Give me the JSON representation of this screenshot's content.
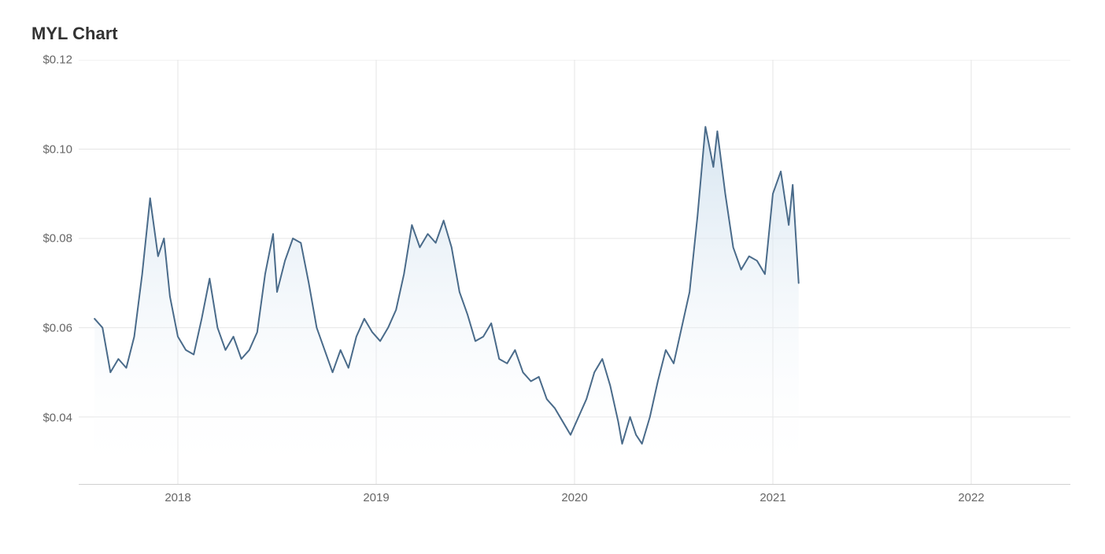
{
  "chart": {
    "type": "area",
    "title": "MYL Chart",
    "title_fontsize": 22,
    "title_color": "#333333",
    "background_color": "#ffffff",
    "grid_color": "#e5e5e5",
    "axis_text_color": "#666666",
    "line_color": "#4a6b8a",
    "line_width": 2,
    "fill_top_color": "#cfe0ee",
    "fill_bottom_color": "#ffffff",
    "fill_opacity": 0.85,
    "y_axis": {
      "min": 0.025,
      "max": 0.12,
      "ticks": [
        0.04,
        0.06,
        0.08,
        0.1,
        0.12
      ],
      "tick_labels": [
        "$0.04",
        "$0.06",
        "$0.08",
        "$0.10",
        "$0.12"
      ],
      "label_fontsize": 15
    },
    "x_axis": {
      "min": 2017.5,
      "max": 2022.5,
      "ticks": [
        2018,
        2019,
        2020,
        2021,
        2022
      ],
      "tick_labels": [
        "2018",
        "2019",
        "2020",
        "2021",
        "2022"
      ],
      "label_fontsize": 15
    },
    "series": [
      {
        "name": "MYL",
        "data": [
          [
            2017.58,
            0.062
          ],
          [
            2017.62,
            0.06
          ],
          [
            2017.66,
            0.05
          ],
          [
            2017.7,
            0.053
          ],
          [
            2017.74,
            0.051
          ],
          [
            2017.78,
            0.058
          ],
          [
            2017.82,
            0.072
          ],
          [
            2017.86,
            0.089
          ],
          [
            2017.9,
            0.076
          ],
          [
            2017.93,
            0.08
          ],
          [
            2017.96,
            0.067
          ],
          [
            2018.0,
            0.058
          ],
          [
            2018.04,
            0.055
          ],
          [
            2018.08,
            0.054
          ],
          [
            2018.12,
            0.062
          ],
          [
            2018.16,
            0.071
          ],
          [
            2018.2,
            0.06
          ],
          [
            2018.24,
            0.055
          ],
          [
            2018.28,
            0.058
          ],
          [
            2018.32,
            0.053
          ],
          [
            2018.36,
            0.055
          ],
          [
            2018.4,
            0.059
          ],
          [
            2018.44,
            0.072
          ],
          [
            2018.48,
            0.081
          ],
          [
            2018.5,
            0.068
          ],
          [
            2018.54,
            0.075
          ],
          [
            2018.58,
            0.08
          ],
          [
            2018.62,
            0.079
          ],
          [
            2018.66,
            0.07
          ],
          [
            2018.7,
            0.06
          ],
          [
            2018.74,
            0.055
          ],
          [
            2018.78,
            0.05
          ],
          [
            2018.82,
            0.055
          ],
          [
            2018.86,
            0.051
          ],
          [
            2018.9,
            0.058
          ],
          [
            2018.94,
            0.062
          ],
          [
            2018.98,
            0.059
          ],
          [
            2019.02,
            0.057
          ],
          [
            2019.06,
            0.06
          ],
          [
            2019.1,
            0.064
          ],
          [
            2019.14,
            0.072
          ],
          [
            2019.18,
            0.083
          ],
          [
            2019.22,
            0.078
          ],
          [
            2019.26,
            0.081
          ],
          [
            2019.3,
            0.079
          ],
          [
            2019.34,
            0.084
          ],
          [
            2019.38,
            0.078
          ],
          [
            2019.42,
            0.068
          ],
          [
            2019.46,
            0.063
          ],
          [
            2019.5,
            0.057
          ],
          [
            2019.54,
            0.058
          ],
          [
            2019.58,
            0.061
          ],
          [
            2019.62,
            0.053
          ],
          [
            2019.66,
            0.052
          ],
          [
            2019.7,
            0.055
          ],
          [
            2019.74,
            0.05
          ],
          [
            2019.78,
            0.048
          ],
          [
            2019.82,
            0.049
          ],
          [
            2019.86,
            0.044
          ],
          [
            2019.9,
            0.042
          ],
          [
            2019.94,
            0.039
          ],
          [
            2019.98,
            0.036
          ],
          [
            2020.02,
            0.04
          ],
          [
            2020.06,
            0.044
          ],
          [
            2020.1,
            0.05
          ],
          [
            2020.14,
            0.053
          ],
          [
            2020.18,
            0.047
          ],
          [
            2020.22,
            0.039
          ],
          [
            2020.24,
            0.034
          ],
          [
            2020.28,
            0.04
          ],
          [
            2020.31,
            0.036
          ],
          [
            2020.34,
            0.034
          ],
          [
            2020.38,
            0.04
          ],
          [
            2020.42,
            0.048
          ],
          [
            2020.46,
            0.055
          ],
          [
            2020.5,
            0.052
          ],
          [
            2020.54,
            0.06
          ],
          [
            2020.58,
            0.068
          ],
          [
            2020.62,
            0.085
          ],
          [
            2020.66,
            0.105
          ],
          [
            2020.7,
            0.096
          ],
          [
            2020.72,
            0.104
          ],
          [
            2020.76,
            0.09
          ],
          [
            2020.8,
            0.078
          ],
          [
            2020.84,
            0.073
          ],
          [
            2020.88,
            0.076
          ],
          [
            2020.92,
            0.075
          ],
          [
            2020.96,
            0.072
          ],
          [
            2021.0,
            0.09
          ],
          [
            2021.04,
            0.095
          ],
          [
            2021.08,
            0.083
          ],
          [
            2021.1,
            0.092
          ],
          [
            2021.13,
            0.07
          ]
        ]
      }
    ]
  }
}
